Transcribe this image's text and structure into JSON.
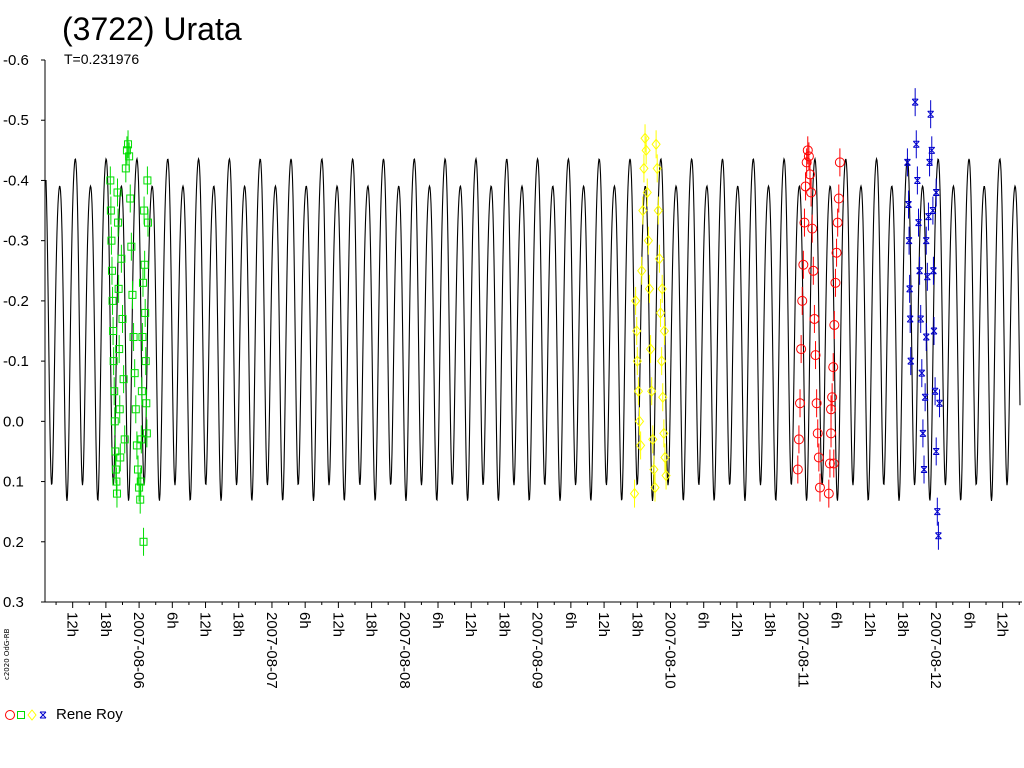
{
  "chart_data": {
    "type": "scatter",
    "title": "(3722) Urata",
    "subtitle": "T=0.231976",
    "y_inverted": true,
    "ylim": [
      -0.6,
      0.3
    ],
    "y_ticks": [
      "-0.6",
      "-0.5",
      "-0.4",
      "-0.3",
      "-0.2",
      "-0.1",
      "0.0",
      "0.1",
      "0.2",
      "0.3"
    ],
    "x_unit": "hours",
    "xlim": [
      7,
      183.5
    ],
    "x_ticks": [
      {
        "h": 12,
        "label": "12h"
      },
      {
        "h": 18,
        "label": "18h"
      },
      {
        "h": 24,
        "label": "2007-08-06"
      },
      {
        "h": 30,
        "label": "6h"
      },
      {
        "h": 36,
        "label": "12h"
      },
      {
        "h": 42,
        "label": "18h"
      },
      {
        "h": 48,
        "label": "2007-08-07"
      },
      {
        "h": 54,
        "label": "6h"
      },
      {
        "h": 60,
        "label": "12h"
      },
      {
        "h": 66,
        "label": "18h"
      },
      {
        "h": 72,
        "label": "2007-08-08"
      },
      {
        "h": 78,
        "label": "6h"
      },
      {
        "h": 84,
        "label": "12h"
      },
      {
        "h": 90,
        "label": "18h"
      },
      {
        "h": 96,
        "label": "2007-08-09"
      },
      {
        "h": 102,
        "label": "6h"
      },
      {
        "h": 108,
        "label": "12h"
      },
      {
        "h": 114,
        "label": "18h"
      },
      {
        "h": 120,
        "label": "2007-08-10"
      },
      {
        "h": 126,
        "label": "6h"
      },
      {
        "h": 132,
        "label": "12h"
      },
      {
        "h": 138,
        "label": "18h"
      },
      {
        "h": 144,
        "label": "2007-08-11"
      },
      {
        "h": 150,
        "label": "6h"
      },
      {
        "h": 156,
        "label": "12h"
      },
      {
        "h": 162,
        "label": "18h"
      },
      {
        "h": 168,
        "label": "2007-08-12"
      },
      {
        "h": 174,
        "label": "6h"
      },
      {
        "h": 180,
        "label": "12h"
      }
    ],
    "model_curve": {
      "color": "#000000",
      "period_hours": 5.567424,
      "mean": -0.18,
      "harmonics": [
        {
          "k": 2,
          "amp": 0.265,
          "phase": 0.3
        },
        {
          "k": 1,
          "amp": 0.025,
          "phase": 1.2
        },
        {
          "k": 4,
          "amp": 0.035,
          "phase": 0.9
        }
      ]
    },
    "legend": {
      "position": "bottom-left",
      "label": "Rene Roy",
      "markers": [
        "circle",
        "square",
        "diamond",
        "star"
      ]
    },
    "series": [
      {
        "marker": "square",
        "color": "#00dd00",
        "points": [
          [
            18.8,
            -0.4
          ],
          [
            18.9,
            -0.35
          ],
          [
            19.0,
            -0.3
          ],
          [
            19.1,
            -0.25
          ],
          [
            19.2,
            -0.2
          ],
          [
            19.3,
            -0.15
          ],
          [
            19.4,
            -0.1
          ],
          [
            19.5,
            -0.05
          ],
          [
            19.6,
            0.0
          ],
          [
            19.7,
            0.05
          ],
          [
            19.8,
            0.08
          ],
          [
            19.9,
            0.1
          ],
          [
            20.0,
            0.12
          ],
          [
            20.1,
            -0.38
          ],
          [
            20.2,
            -0.33
          ],
          [
            20.3,
            -0.22
          ],
          [
            20.4,
            -0.12
          ],
          [
            20.5,
            -0.02
          ],
          [
            20.6,
            0.06
          ],
          [
            20.8,
            -0.27
          ],
          [
            21.0,
            -0.17
          ],
          [
            21.2,
            -0.07
          ],
          [
            21.4,
            0.03
          ],
          [
            21.6,
            -0.42
          ],
          [
            21.8,
            -0.45
          ],
          [
            22.0,
            -0.46
          ],
          [
            22.2,
            -0.44
          ],
          [
            22.4,
            -0.37
          ],
          [
            22.6,
            -0.29
          ],
          [
            22.8,
            -0.21
          ],
          [
            23.0,
            -0.14
          ],
          [
            23.2,
            -0.08
          ],
          [
            23.4,
            -0.02
          ],
          [
            23.6,
            0.04
          ],
          [
            23.8,
            0.08
          ],
          [
            24.0,
            0.11
          ],
          [
            24.2,
            0.13
          ],
          [
            24.3,
            0.1
          ],
          [
            24.4,
            0.03
          ],
          [
            24.5,
            -0.05
          ],
          [
            24.6,
            -0.14
          ],
          [
            24.7,
            -0.23
          ],
          [
            24.8,
            0.2
          ],
          [
            24.9,
            -0.35
          ],
          [
            25.0,
            -0.26
          ],
          [
            25.1,
            -0.18
          ],
          [
            25.2,
            -0.1
          ],
          [
            25.3,
            -0.03
          ],
          [
            25.4,
            0.02
          ],
          [
            25.5,
            -0.4
          ],
          [
            25.6,
            -0.33
          ]
        ]
      },
      {
        "marker": "diamond",
        "color": "#ffff00",
        "points": [
          [
            113.5,
            0.12
          ],
          [
            113.7,
            -0.2
          ],
          [
            113.9,
            -0.15
          ],
          [
            114.0,
            -0.1
          ],
          [
            114.2,
            -0.05
          ],
          [
            114.4,
            0.0
          ],
          [
            114.6,
            0.04
          ],
          [
            114.8,
            -0.25
          ],
          [
            115.0,
            -0.35
          ],
          [
            115.2,
            -0.42
          ],
          [
            115.4,
            -0.47
          ],
          [
            115.6,
            -0.45
          ],
          [
            115.8,
            -0.38
          ],
          [
            116.0,
            -0.3
          ],
          [
            116.2,
            -0.22
          ],
          [
            116.4,
            -0.12
          ],
          [
            116.6,
            -0.05
          ],
          [
            116.8,
            0.03
          ],
          [
            117.0,
            0.08
          ],
          [
            117.2,
            0.11
          ],
          [
            117.4,
            -0.46
          ],
          [
            117.6,
            -0.42
          ],
          [
            117.8,
            -0.35
          ],
          [
            118.0,
            -0.27
          ],
          [
            118.2,
            -0.18
          ],
          [
            118.4,
            -0.1
          ],
          [
            118.6,
            -0.04
          ],
          [
            118.8,
            0.02
          ],
          [
            119.0,
            0.06
          ],
          [
            119.2,
            0.09
          ],
          [
            118.9,
            -0.15
          ],
          [
            118.5,
            -0.22
          ]
        ]
      },
      {
        "marker": "circle",
        "color": "#ff0000",
        "points": [
          [
            143.0,
            0.08
          ],
          [
            143.2,
            0.03
          ],
          [
            143.4,
            -0.03
          ],
          [
            143.6,
            -0.12
          ],
          [
            143.8,
            -0.2
          ],
          [
            144.0,
            -0.26
          ],
          [
            144.2,
            -0.33
          ],
          [
            144.4,
            -0.39
          ],
          [
            144.6,
            -0.43
          ],
          [
            144.8,
            -0.45
          ],
          [
            145.0,
            -0.44
          ],
          [
            145.2,
            -0.41
          ],
          [
            145.4,
            -0.38
          ],
          [
            145.6,
            -0.32
          ],
          [
            145.8,
            -0.25
          ],
          [
            146.0,
            -0.17
          ],
          [
            146.2,
            -0.11
          ],
          [
            146.4,
            -0.03
          ],
          [
            146.6,
            0.02
          ],
          [
            146.8,
            0.06
          ],
          [
            147.0,
            0.11
          ],
          [
            148.6,
            0.12
          ],
          [
            148.8,
            0.07
          ],
          [
            149.0,
            0.02
          ],
          [
            149.2,
            -0.04
          ],
          [
            149.4,
            -0.09
          ],
          [
            149.6,
            -0.16
          ],
          [
            149.8,
            -0.23
          ],
          [
            150.0,
            -0.28
          ],
          [
            150.2,
            -0.33
          ],
          [
            150.4,
            -0.37
          ],
          [
            150.6,
            -0.43
          ],
          [
            149.0,
            -0.02
          ],
          [
            149.5,
            0.07
          ]
        ]
      },
      {
        "marker": "star",
        "color": "#0000cc",
        "points": [
          [
            162.8,
            -0.43
          ],
          [
            163.0,
            -0.36
          ],
          [
            163.1,
            -0.3
          ],
          [
            163.2,
            -0.22
          ],
          [
            163.3,
            -0.17
          ],
          [
            163.4,
            -0.1
          ],
          [
            164.2,
            -0.53
          ],
          [
            164.4,
            -0.46
          ],
          [
            164.6,
            -0.4
          ],
          [
            164.8,
            -0.33
          ],
          [
            165.0,
            -0.25
          ],
          [
            165.2,
            -0.17
          ],
          [
            165.4,
            -0.08
          ],
          [
            165.6,
            0.02
          ],
          [
            165.8,
            0.08
          ],
          [
            166.0,
            -0.04
          ],
          [
            166.2,
            -0.14
          ],
          [
            166.4,
            -0.24
          ],
          [
            166.6,
            -0.34
          ],
          [
            166.8,
            -0.43
          ],
          [
            167.0,
            -0.51
          ],
          [
            167.2,
            -0.45
          ],
          [
            167.4,
            -0.35
          ],
          [
            167.5,
            -0.25
          ],
          [
            167.6,
            -0.15
          ],
          [
            167.8,
            -0.05
          ],
          [
            168.0,
            0.05
          ],
          [
            168.2,
            0.15
          ],
          [
            168.4,
            0.19
          ],
          [
            168.6,
            -0.03
          ],
          [
            168.0,
            -0.38
          ],
          [
            166.2,
            -0.3
          ]
        ]
      }
    ]
  },
  "copyright": "c2020 OdG-RB"
}
